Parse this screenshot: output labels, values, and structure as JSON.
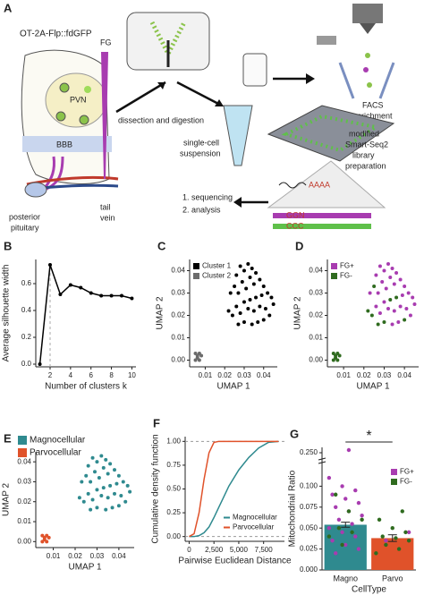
{
  "diagram": {
    "panel": "A",
    "mouse": "OT-2A-Flp::fdGFP",
    "fg": "FG",
    "pvn": "PVN",
    "bbb": "BBB",
    "pituitary": [
      "posterior",
      "pituitary"
    ],
    "vein": [
      "tail",
      "vein"
    ],
    "dissection": "dissection and digestion",
    "suspension": [
      "single-cell",
      "suspension"
    ],
    "facs": [
      "FACS",
      "enrichment"
    ],
    "library": [
      "modified",
      "Smart-Seq2",
      "library",
      "preparation"
    ],
    "steps": [
      "1. sequencing",
      "2. analysis"
    ],
    "polya": "AAAA",
    "ggn": "GGN",
    "ccc": "CCC"
  },
  "chart_data": [
    {
      "panel": "B",
      "type": "line",
      "xlabel": "Number of clusters k",
      "ylabel": "Average silhouette width",
      "x": [
        1,
        2,
        3,
        4,
        5,
        6,
        7,
        8,
        9,
        10
      ],
      "values": [
        0,
        0.74,
        0.52,
        0.59,
        0.57,
        0.53,
        0.51,
        0.51,
        0.51,
        0.49
      ],
      "color": "#000000",
      "highlight_x": 2,
      "xlim": [
        0.6,
        10.4
      ],
      "xticks": [
        2,
        4,
        6,
        8,
        10
      ],
      "ylim": [
        -0.02,
        0.78
      ],
      "yticks": [
        {
          "value": 0,
          "label": "0.0"
        },
        0.2,
        0.4,
        0.6
      ]
    },
    {
      "panel": "C",
      "type": "scatter",
      "xlabel": "UMAP 1",
      "ylabel": "UMAP 2",
      "legend": "top-left",
      "xlim": [
        0.002,
        0.047
      ],
      "xticks": [
        0.01,
        0.02,
        0.03,
        0.04
      ],
      "ylim": [
        -0.003,
        0.045
      ],
      "yticks": [
        {
          "value": 0,
          "label": "0.00"
        },
        0.01,
        0.02,
        0.03,
        0.04
      ],
      "series": [
        {
          "name": "Cluster 1",
          "color": "#000000",
          "x": [
            0.026,
            0.028,
            0.03,
            0.032,
            0.034,
            0.036,
            0.033,
            0.029,
            0.025,
            0.023,
            0.027,
            0.031,
            0.035,
            0.038,
            0.04,
            0.042,
            0.044,
            0.039,
            0.036,
            0.033,
            0.03,
            0.026,
            0.022,
            0.024,
            0.028,
            0.032,
            0.035,
            0.038,
            0.041,
            0.043,
            0.04,
            0.037,
            0.034,
            0.03,
            0.045,
            0.027
          ],
          "values": [
            0.038,
            0.042,
            0.04,
            0.043,
            0.041,
            0.039,
            0.037,
            0.035,
            0.033,
            0.03,
            0.03,
            0.032,
            0.034,
            0.036,
            0.033,
            0.03,
            0.028,
            0.029,
            0.028,
            0.027,
            0.026,
            0.024,
            0.022,
            0.02,
            0.021,
            0.023,
            0.022,
            0.024,
            0.023,
            0.02,
            0.018,
            0.017,
            0.016,
            0.017,
            0.025,
            0.016
          ]
        },
        {
          "name": "Cluster 2",
          "color": "#6b6b6b",
          "x": [
            0.005,
            0.006,
            0.007,
            0.006,
            0.008,
            0.005,
            0.007
          ],
          "values": [
            0.003,
            0.002,
            0.003,
            0.001,
            0.002,
            0.0,
            0.0
          ]
        }
      ]
    },
    {
      "panel": "D",
      "type": "scatter",
      "xlabel": "UMAP 1",
      "ylabel": "UMAP 2",
      "legend": "top-left",
      "xlim": [
        0.002,
        0.047
      ],
      "xticks": [
        0.01,
        0.02,
        0.03,
        0.04
      ],
      "ylim": [
        -0.003,
        0.045
      ],
      "yticks": [
        {
          "value": 0,
          "label": "0.00"
        },
        0.01,
        0.02,
        0.03,
        0.04
      ],
      "series": [
        {
          "name": "FG+",
          "color": "#a83cb0",
          "x": [
            0.026,
            0.028,
            0.03,
            0.032,
            0.034,
            0.036,
            0.033,
            0.029,
            0.023,
            0.027,
            0.031,
            0.035,
            0.038,
            0.04,
            0.042,
            0.044,
            0.039,
            0.03,
            0.026,
            0.028,
            0.032,
            0.035,
            0.038,
            0.041,
            0.043,
            0.037,
            0.034,
            0.045
          ],
          "values": [
            0.038,
            0.042,
            0.04,
            0.043,
            0.041,
            0.039,
            0.037,
            0.035,
            0.03,
            0.03,
            0.032,
            0.034,
            0.036,
            0.033,
            0.03,
            0.028,
            0.029,
            0.026,
            0.024,
            0.021,
            0.023,
            0.022,
            0.024,
            0.023,
            0.02,
            0.017,
            0.016,
            0.025
          ]
        },
        {
          "name": "FG-",
          "color": "#2f6b1f",
          "x": [
            0.025,
            0.036,
            0.033,
            0.022,
            0.024,
            0.04,
            0.03,
            0.027,
            0.005,
            0.006,
            0.007,
            0.006,
            0.008,
            0.005,
            0.007
          ],
          "values": [
            0.033,
            0.028,
            0.027,
            0.022,
            0.02,
            0.018,
            0.017,
            0.016,
            0.003,
            0.002,
            0.003,
            0.001,
            0.002,
            0.0,
            0.0
          ]
        }
      ]
    },
    {
      "panel": "E",
      "type": "scatter",
      "xlabel": "UMAP 1",
      "ylabel": "UMAP 2",
      "legend": "above",
      "xlim": [
        0.002,
        0.047
      ],
      "xticks": [
        0.01,
        0.02,
        0.03,
        0.04
      ],
      "ylim": [
        -0.003,
        0.045
      ],
      "yticks": [
        {
          "value": 0,
          "label": "0.00"
        },
        0.01,
        0.02,
        0.03,
        0.04
      ],
      "series": [
        {
          "name": "Magnocellular",
          "color": "#2f8a8f",
          "x": [
            0.026,
            0.028,
            0.03,
            0.032,
            0.034,
            0.036,
            0.033,
            0.029,
            0.025,
            0.023,
            0.027,
            0.031,
            0.035,
            0.038,
            0.04,
            0.042,
            0.044,
            0.039,
            0.036,
            0.033,
            0.03,
            0.026,
            0.022,
            0.024,
            0.028,
            0.032,
            0.035,
            0.038,
            0.041,
            0.043,
            0.04,
            0.037,
            0.034,
            0.03,
            0.045,
            0.027
          ],
          "values": [
            0.038,
            0.042,
            0.04,
            0.043,
            0.041,
            0.039,
            0.037,
            0.035,
            0.033,
            0.03,
            0.03,
            0.032,
            0.034,
            0.036,
            0.033,
            0.03,
            0.028,
            0.029,
            0.028,
            0.027,
            0.026,
            0.024,
            0.022,
            0.02,
            0.021,
            0.023,
            0.022,
            0.024,
            0.023,
            0.02,
            0.018,
            0.017,
            0.016,
            0.017,
            0.025,
            0.016
          ]
        },
        {
          "name": "Parvocellular",
          "color": "#e0522a",
          "x": [
            0.005,
            0.006,
            0.007,
            0.006,
            0.008,
            0.005,
            0.007
          ],
          "values": [
            0.003,
            0.002,
            0.003,
            0.001,
            0.002,
            0.0,
            0.0
          ]
        }
      ]
    },
    {
      "panel": "F",
      "type": "line",
      "xlabel": "Pairwise Euclidean Distance",
      "ylabel": "Cumulative density function",
      "legend": "bottom-right",
      "hlines": [
        0,
        1
      ],
      "x": [
        0,
        500,
        1000,
        1500,
        2000,
        2500,
        3000,
        3500,
        4000,
        5000,
        6000,
        7000,
        8000,
        9000
      ],
      "series": [
        {
          "name": "Magnocellular",
          "color": "#2f8a8f",
          "values": [
            0,
            0,
            0.01,
            0.04,
            0.1,
            0.2,
            0.31,
            0.42,
            0.53,
            0.7,
            0.83,
            0.93,
            0.99,
            1
          ]
        },
        {
          "name": "Parvocellular",
          "color": "#e0522a",
          "values": [
            0,
            0.03,
            0.25,
            0.6,
            0.88,
            0.99,
            1,
            1,
            1,
            1,
            1,
            1,
            1,
            1
          ]
        }
      ],
      "xlim": [
        -400,
        9600
      ],
      "xticks": [
        0,
        {
          "value": 2500,
          "label": "2,500"
        },
        {
          "value": 5000,
          "label": "5,000"
        },
        {
          "value": 7500,
          "label": "7,500"
        }
      ],
      "ylim": [
        -0.05,
        1.05
      ],
      "yticks": [
        {
          "value": 0,
          "label": "0.00"
        },
        0.25,
        {
          "value": 0.5,
          "label": "0.50"
        },
        0.75,
        {
          "value": 1,
          "label": "1.00"
        }
      ]
    },
    {
      "panel": "G",
      "type": "bar",
      "xlabel": "CellType",
      "ylabel": "Mitochondrial Ratio",
      "significance": "*",
      "legend": "top-right",
      "categories": [
        "Magno",
        "Parvo"
      ],
      "values": [
        0.054,
        0.038
      ],
      "errors": [
        0.003,
        0.004
      ],
      "bar_colors": [
        "#2f8a8f",
        "#e0522a"
      ],
      "ylim": [
        0,
        0.26
      ],
      "ybreak": [
        0.125,
        0.24
      ],
      "yticks": [
        {
          "value": 0,
          "label": "0.000"
        },
        0.025,
        {
          "value": 0.05,
          "label": "0.050"
        },
        0.075,
        {
          "value": 0.1,
          "label": "0.100"
        },
        {
          "value": 0.25,
          "label": "0.250"
        }
      ],
      "series": [
        {
          "name": "FG+",
          "color": "#a83cb0",
          "x": [
            "Magno",
            "Magno",
            "Magno",
            "Magno",
            "Magno",
            "Magno",
            "Magno",
            "Magno",
            "Magno",
            "Magno",
            "Magno",
            "Magno",
            "Magno",
            "Magno",
            "Magno",
            "Magno",
            "Magno",
            "Magno",
            "Magno",
            "Parvo",
            "Parvo"
          ],
          "values": [
            0.11,
            0.1,
            0.095,
            0.09,
            0.085,
            0.08,
            0.075,
            0.07,
            0.065,
            0.06,
            0.055,
            0.05,
            0.045,
            0.04,
            0.035,
            0.03,
            0.025,
            0.02,
            0.255,
            0.045,
            0.035
          ]
        },
        {
          "name": "FG-",
          "color": "#2f6b1f",
          "x": [
            "Magno",
            "Magno",
            "Magno",
            "Magno",
            "Magno",
            "Magno",
            "Magno",
            "Parvo",
            "Parvo",
            "Parvo",
            "Parvo",
            "Parvo",
            "Parvo",
            "Parvo",
            "Parvo",
            "Parvo",
            "Parvo"
          ],
          "values": [
            0.09,
            0.07,
            0.06,
            0.05,
            0.045,
            0.04,
            0.03,
            0.07,
            0.06,
            0.05,
            0.045,
            0.04,
            0.038,
            0.035,
            0.03,
            0.025,
            0.02
          ]
        }
      ]
    }
  ]
}
